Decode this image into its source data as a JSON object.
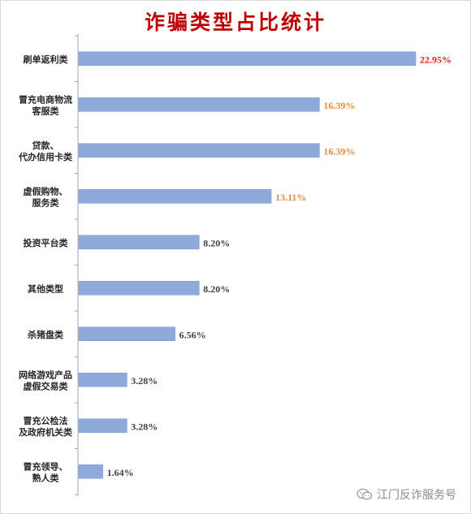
{
  "chart_data": {
    "type": "bar",
    "orientation": "horizontal",
    "title": "诈骗类型占比统计",
    "categories": [
      [
        "刷单返利类"
      ],
      [
        "冒充电商物流",
        "客服类"
      ],
      [
        "贷款、",
        "代办信用卡类"
      ],
      [
        "虚假购物、",
        "服务类"
      ],
      [
        "投资平台类"
      ],
      [
        "其他类型"
      ],
      [
        "杀猪盘类"
      ],
      [
        "网络游戏产品",
        "虚假交易类"
      ],
      [
        "冒充公检法",
        "及政府机关类"
      ],
      [
        "冒充领导、",
        "熟人类"
      ]
    ],
    "values": [
      22.95,
      16.39,
      16.39,
      13.11,
      8.2,
      8.2,
      6.56,
      3.28,
      3.28,
      1.64
    ],
    "value_labels": [
      "22.95%",
      "16.39%",
      "16.39%",
      "13.11%",
      "8.20%",
      "8.20%",
      "6.56%",
      "3.28%",
      "3.28%",
      "1.64%"
    ],
    "label_colors": [
      "#e02020",
      "#e8883a",
      "#e8883a",
      "#e8883a",
      "#404040",
      "#404040",
      "#404040",
      "#404040",
      "#404040",
      "#404040"
    ],
    "bar_color": "#8eaadb",
    "xlim": [
      0,
      22.95
    ],
    "grid": false,
    "legend": "none"
  },
  "watermark": {
    "icon": "wechat-icon",
    "text": "江门反诈服务号"
  }
}
